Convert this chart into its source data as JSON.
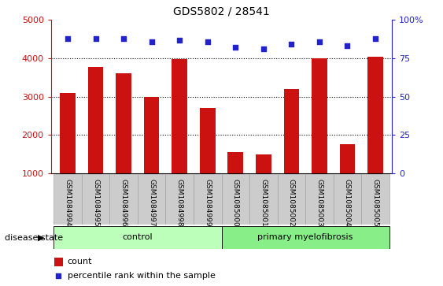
{
  "title": "GDS5802 / 28541",
  "samples": [
    "GSM1084994",
    "GSM1084995",
    "GSM1084996",
    "GSM1084997",
    "GSM1084998",
    "GSM1084999",
    "GSM1085000",
    "GSM1085001",
    "GSM1085002",
    "GSM1085003",
    "GSM1085004",
    "GSM1085005"
  ],
  "counts": [
    3100,
    3780,
    3600,
    3000,
    3970,
    2700,
    1540,
    1490,
    3200,
    4000,
    1750,
    4050
  ],
  "percentiles": [
    88,
    88,
    88,
    86,
    87,
    86,
    82,
    81,
    84,
    86,
    83,
    88
  ],
  "bar_color": "#cc1111",
  "dot_color": "#2222cc",
  "ylim_left": [
    1000,
    5000
  ],
  "ylim_right": [
    0,
    100
  ],
  "yticks_left": [
    1000,
    2000,
    3000,
    4000,
    5000
  ],
  "yticks_right": [
    0,
    25,
    50,
    75,
    100
  ],
  "grid_vals": [
    2000,
    3000,
    4000
  ],
  "control_count": 6,
  "disease_state_label": "disease state",
  "group_labels": [
    "control",
    "primary myelofibrosis"
  ],
  "group_color_control": "#bbffbb",
  "group_color_disease": "#88ee88",
  "legend_count_label": "count",
  "legend_pct_label": "percentile rank within the sample",
  "bg_color": "#ffffff",
  "tick_bg_color": "#cccccc"
}
